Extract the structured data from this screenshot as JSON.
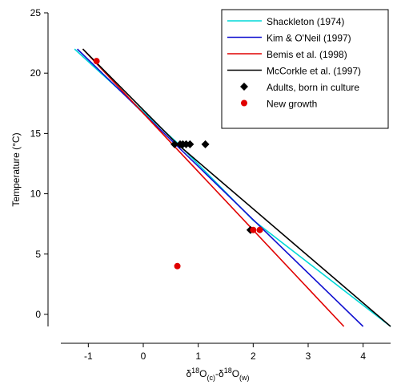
{
  "chart_data": {
    "type": "line",
    "ylabel": "Temperature (°C)",
    "xlabel": [
      {
        "text": "δ"
      },
      {
        "text": "18",
        "shift": "super"
      },
      {
        "text": "O"
      },
      {
        "text": "(c)",
        "shift": "sub"
      },
      {
        "text": "-δ"
      },
      {
        "text": "18",
        "shift": "super"
      },
      {
        "text": "O"
      },
      {
        "text": "(w)",
        "shift": "sub"
      }
    ],
    "xlim": [
      -1.5,
      4.5
    ],
    "ylim": [
      -1,
      25
    ],
    "xticks": [
      -1,
      0,
      1,
      2,
      3,
      4
    ],
    "yticks": [
      0,
      5,
      10,
      15,
      20,
      25
    ],
    "legend": "upper right",
    "series": [
      {
        "name": "Shackleton (1974)",
        "color": "#00d8d8",
        "kind": "line",
        "x": [
          -1.25,
          0.6,
          2,
          4.5
        ],
        "values": [
          22,
          14.3,
          7.8,
          -1
        ]
      },
      {
        "name": "Kim & O'Neil (1997)",
        "color": "#1010d0",
        "kind": "line",
        "x": [
          -1.2,
          4.0
        ],
        "values": [
          22,
          -1
        ]
      },
      {
        "name": "Bemis et al. (1998)",
        "color": "#e00000",
        "kind": "line",
        "x": [
          -1.1,
          3.65
        ],
        "values": [
          22,
          -1
        ]
      },
      {
        "name": "McCorkle et al. (1997)",
        "color": "#000000",
        "kind": "line",
        "x": [
          -1.1,
          0.6,
          4.5
        ],
        "values": [
          22,
          14.2,
          -1
        ]
      },
      {
        "name": "Adults, born in culture",
        "color": "#000000",
        "kind": "diamond",
        "x": [
          0.57,
          0.67,
          0.72,
          0.78,
          0.85,
          1.13,
          1.95
        ],
        "values": [
          14.1,
          14.1,
          14.1,
          14.1,
          14.1,
          14.1,
          7
        ]
      },
      {
        "name": "New growth",
        "color": "#e00000",
        "kind": "dot",
        "x": [
          -0.85,
          0.62,
          2.0,
          2.12
        ],
        "values": [
          21,
          4,
          7,
          7
        ]
      }
    ]
  }
}
